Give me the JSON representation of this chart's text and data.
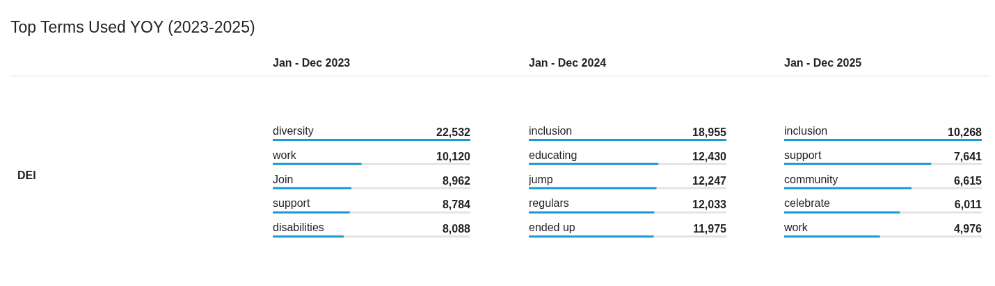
{
  "chart_data": [
    {
      "type": "other",
      "title": "Top Terms Used YOY (2023-2025)",
      "annotations": [
        "DEI"
      ]
    },
    {
      "type": "bar",
      "orientation": "horizontal",
      "title": "Jan - Dec 2023",
      "categories": [
        "diversity",
        "work",
        "Join",
        "support",
        "disabilities"
      ],
      "values": [
        22532,
        10120,
        8962,
        8784,
        8088
      ],
      "color": "#1a9bd7",
      "value_labels": [
        "22,532",
        "10,120",
        "8,962",
        "8,784",
        "8,088"
      ]
    },
    {
      "type": "bar",
      "orientation": "horizontal",
      "title": "Jan - Dec 2024",
      "categories": [
        "inclusion",
        "educating",
        "jump",
        "regulars",
        "ended up"
      ],
      "values": [
        18955,
        12430,
        12247,
        12033,
        11975
      ],
      "color": "#1a9bd7",
      "value_labels": [
        "18,955",
        "12,430",
        "12,247",
        "12,033",
        "11,975"
      ]
    },
    {
      "type": "bar",
      "orientation": "horizontal",
      "title": "Jan - Dec 2025",
      "categories": [
        "inclusion",
        "support",
        "community",
        "celebrate",
        "work"
      ],
      "values": [
        10268,
        7641,
        6615,
        6011,
        4976
      ],
      "color": "#1a9bd7",
      "value_labels": [
        "10,268",
        "7,641",
        "6,615",
        "6,011",
        "4,976"
      ]
    }
  ]
}
